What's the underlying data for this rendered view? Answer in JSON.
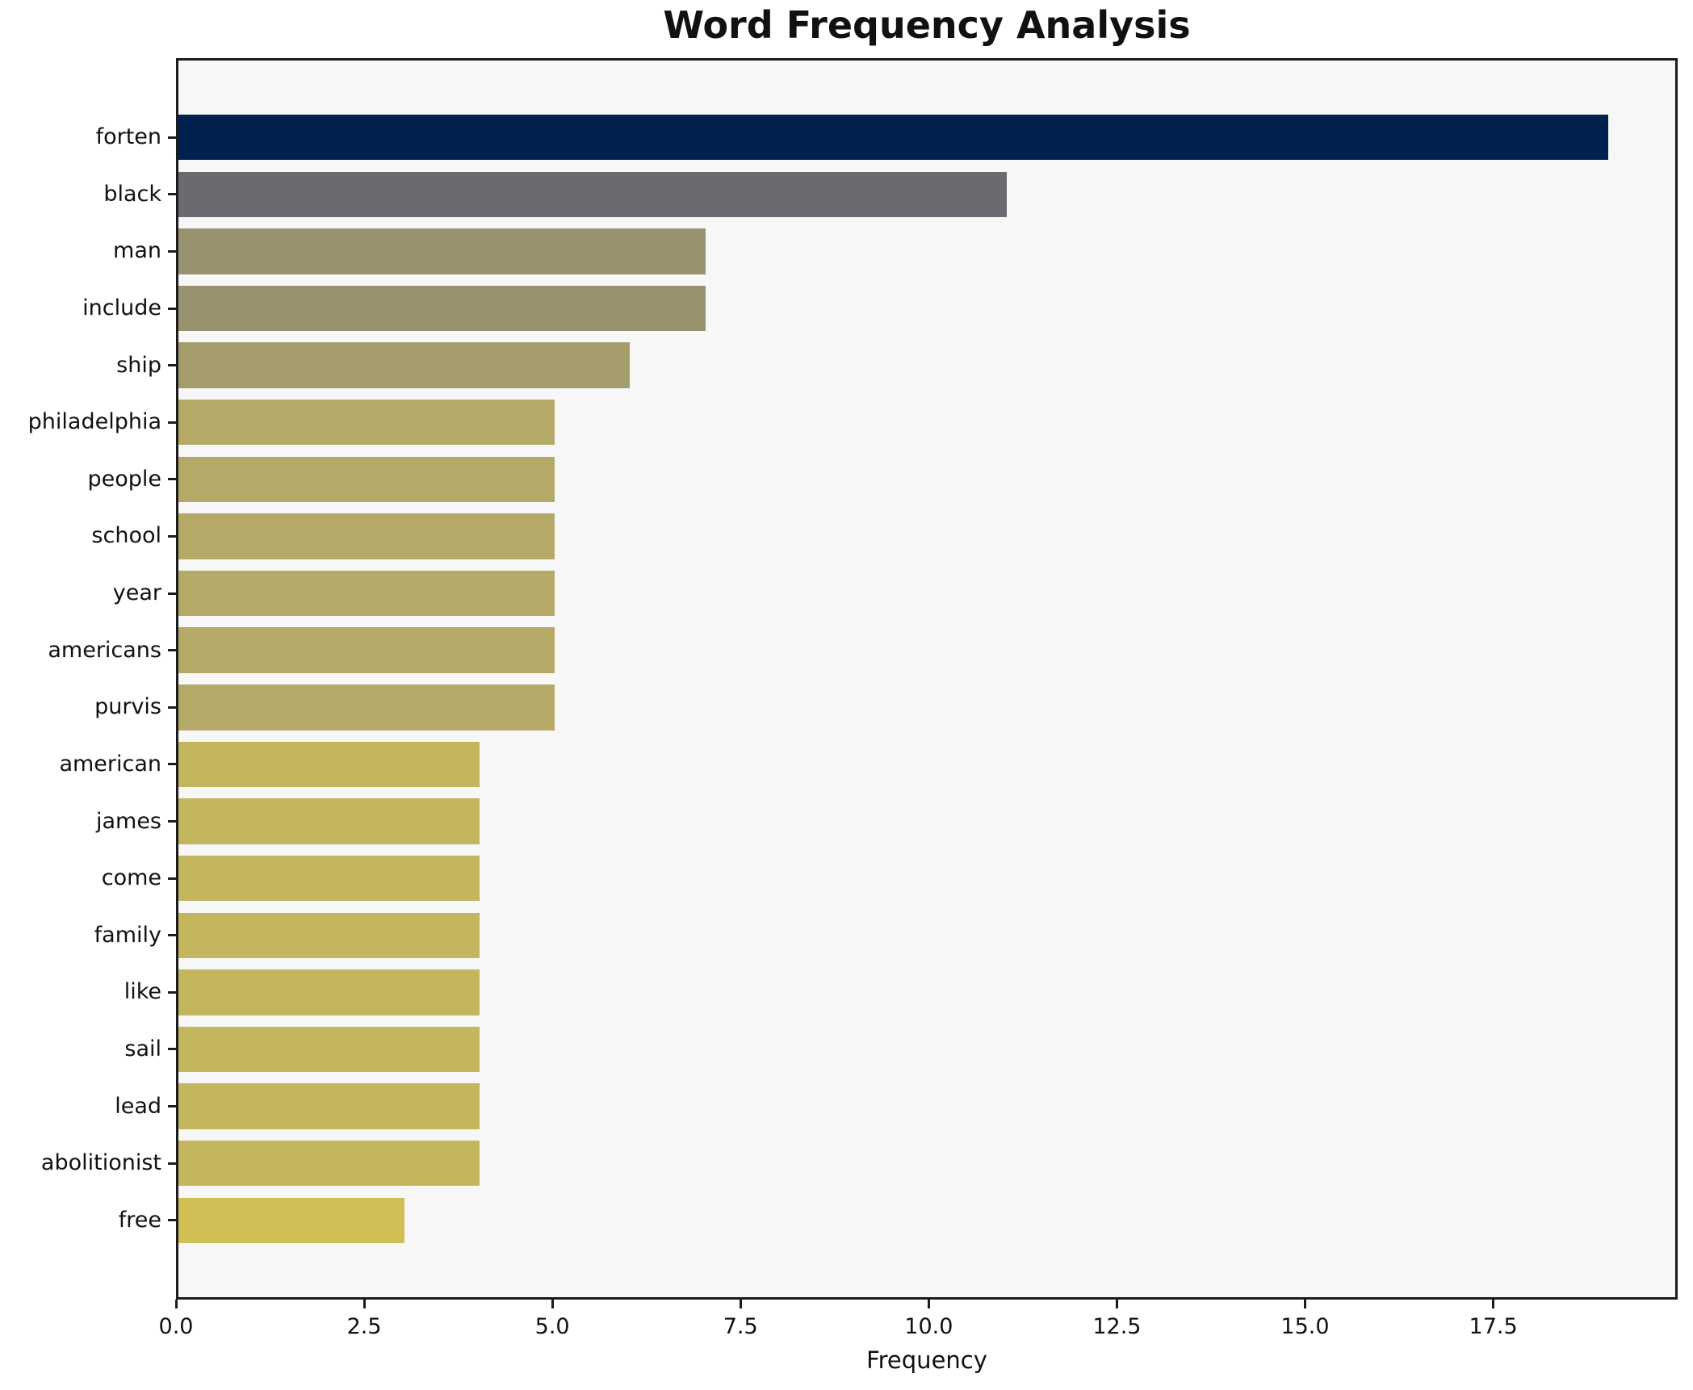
{
  "page": {
    "background": "#ffffff"
  },
  "chart_data": {
    "type": "bar",
    "orientation": "horizontal",
    "title": "Word Frequency Analysis",
    "xlabel": "Frequency",
    "ylabel": "",
    "categories": [
      "forten",
      "black",
      "man",
      "include",
      "ship",
      "philadelphia",
      "people",
      "school",
      "year",
      "americans",
      "purvis",
      "american",
      "james",
      "come",
      "family",
      "like",
      "sail",
      "lead",
      "abolitionist",
      "free"
    ],
    "values": [
      19,
      11,
      7,
      7,
      6,
      5,
      5,
      5,
      5,
      5,
      5,
      4,
      4,
      4,
      4,
      4,
      4,
      4,
      4,
      3
    ],
    "bar_colors": [
      "#01224e",
      "#6a6b71",
      "#99926f",
      "#99926f",
      "#a59c6c",
      "#b4a966",
      "#b4a966",
      "#b4a966",
      "#b4a966",
      "#b4a966",
      "#b4a966",
      "#c4b55f",
      "#c4b55f",
      "#c4b55f",
      "#c4b55f",
      "#c4b55f",
      "#c4b55f",
      "#c4b55f",
      "#c4b55f",
      "#d1bf56"
    ],
    "xlim": [
      0,
      19.95
    ],
    "xticks": [
      0,
      2.5,
      5,
      7.5,
      10,
      12.5,
      15,
      17.5
    ],
    "xtick_labels": [
      "0.0",
      "2.5",
      "5.0",
      "7.5",
      "10.0",
      "12.5",
      "15.0",
      "17.5"
    ],
    "grid": false,
    "legend": "none",
    "plot_background": "#f7f7f8",
    "spine_color": "#1c1c1c",
    "text_color": "#111111"
  }
}
